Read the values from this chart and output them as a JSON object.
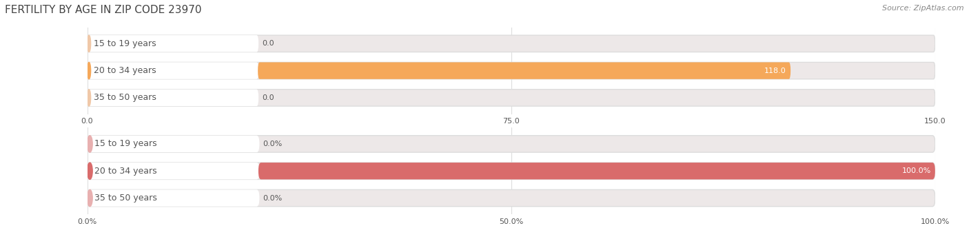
{
  "title": "FERTILITY BY AGE IN ZIP CODE 23970",
  "source": "Source: ZipAtlas.com",
  "top_chart": {
    "categories": [
      "15 to 19 years",
      "20 to 34 years",
      "35 to 50 years"
    ],
    "values": [
      0.0,
      118.0,
      0.0
    ],
    "xlim": [
      0,
      150.0
    ],
    "xticks": [
      0.0,
      75.0,
      150.0
    ],
    "xtick_labels": [
      "0.0",
      "75.0",
      "150.0"
    ],
    "bar_color": "#F5A85A",
    "bar_bg_color": "#EDE8E8",
    "circle_color_full": "#F5A85A",
    "circle_color_empty": "#F0C8A8"
  },
  "bottom_chart": {
    "categories": [
      "15 to 19 years",
      "20 to 34 years",
      "35 to 50 years"
    ],
    "values": [
      0.0,
      100.0,
      0.0
    ],
    "xlim": [
      0,
      100.0
    ],
    "xticks": [
      0.0,
      50.0,
      100.0
    ],
    "xtick_labels": [
      "0.0%",
      "50.0%",
      "100.0%"
    ],
    "bar_color": "#D96B6B",
    "bar_bg_color": "#EDE8E8",
    "circle_color_full": "#D96B6B",
    "circle_color_empty": "#E8B0B0"
  },
  "label_color": "#555555",
  "title_fontsize": 11,
  "source_fontsize": 8,
  "tick_fontsize": 8,
  "bar_label_fontsize": 8,
  "category_fontsize": 9,
  "bar_height": 0.62,
  "background_color": "#FFFFFF",
  "grid_color": "#DDDDDD"
}
